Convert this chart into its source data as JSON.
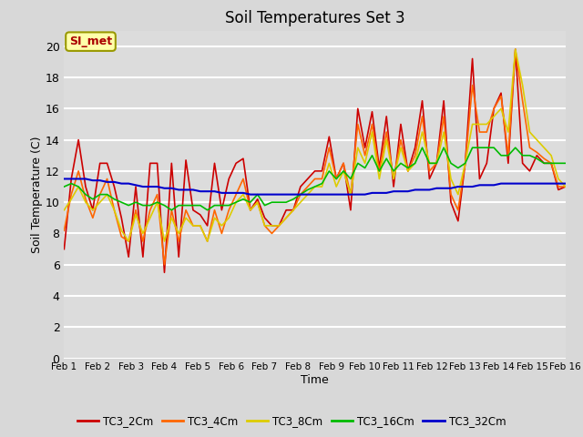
{
  "title": "Soil Temperatures Set 3",
  "xlabel": "Time",
  "ylabel": "Soil Temperature (C)",
  "ylim": [
    0,
    21
  ],
  "yticks": [
    0,
    2,
    4,
    6,
    8,
    10,
    12,
    14,
    16,
    18,
    20
  ],
  "xlabels": [
    "Feb 1",
    "Feb 2",
    "Feb 3",
    "Feb 4",
    "Feb 5",
    "Feb 6",
    "Feb 7",
    "Feb 8",
    "Feb 9",
    "Feb 10",
    "Feb 11",
    "Feb 12",
    "Feb 13",
    "Feb 14",
    "Feb 15",
    "Feb 16"
  ],
  "fig_bg": "#d8d8d8",
  "plot_bg": "#dcdcdc",
  "annotation_text": "SI_met",
  "annotation_bg": "#ffffaa",
  "annotation_border": "#999900",
  "series_order": [
    "TC3_2Cm",
    "TC3_4Cm",
    "TC3_8Cm",
    "TC3_16Cm",
    "TC3_32Cm"
  ],
  "series": {
    "TC3_2Cm": {
      "color": "#cc0000",
      "lw": 1.2,
      "values": [
        7.0,
        11.5,
        14.0,
        11.0,
        9.5,
        12.5,
        12.5,
        11.0,
        9.0,
        6.5,
        11.0,
        6.5,
        12.5,
        12.5,
        5.5,
        12.5,
        6.5,
        12.7,
        9.5,
        9.2,
        8.5,
        12.5,
        9.5,
        11.5,
        12.5,
        12.8,
        9.5,
        10.2,
        9.0,
        8.5,
        8.5,
        9.5,
        9.5,
        11.0,
        11.5,
        12.0,
        12.0,
        14.2,
        11.5,
        12.5,
        9.5,
        16.0,
        13.5,
        15.8,
        12.2,
        15.5,
        11.0,
        15.0,
        12.0,
        13.5,
        16.5,
        11.5,
        12.5,
        16.5,
        10.0,
        8.8,
        12.5,
        19.2,
        11.5,
        12.5,
        16.0,
        17.0,
        12.5,
        19.8,
        12.5,
        12.0,
        13.0,
        12.5,
        12.5,
        10.8,
        11.0
      ]
    },
    "TC3_4Cm": {
      "color": "#ff6600",
      "lw": 1.2,
      "values": [
        8.2,
        10.5,
        12.0,
        10.2,
        9.0,
        10.5,
        11.5,
        9.5,
        7.8,
        7.5,
        9.5,
        7.5,
        9.5,
        10.5,
        6.0,
        9.5,
        7.5,
        9.5,
        8.5,
        8.5,
        7.5,
        9.5,
        8.0,
        9.5,
        10.5,
        11.5,
        9.5,
        10.0,
        8.5,
        8.0,
        8.5,
        9.0,
        9.5,
        10.5,
        11.0,
        11.5,
        11.5,
        13.5,
        11.5,
        12.5,
        10.5,
        15.0,
        13.0,
        15.0,
        12.0,
        14.5,
        11.5,
        14.0,
        12.0,
        13.0,
        15.5,
        12.0,
        12.5,
        15.5,
        10.5,
        9.5,
        12.5,
        17.5,
        14.5,
        14.5,
        16.0,
        16.8,
        13.0,
        19.8,
        16.5,
        13.5,
        13.2,
        12.8,
        12.5,
        11.0,
        11.0
      ]
    },
    "TC3_8Cm": {
      "color": "#ddcc00",
      "lw": 1.2,
      "values": [
        9.5,
        10.2,
        11.0,
        10.0,
        9.5,
        10.0,
        10.5,
        9.5,
        8.2,
        7.5,
        9.2,
        8.0,
        9.0,
        10.0,
        7.5,
        9.0,
        8.0,
        9.0,
        8.5,
        8.5,
        7.5,
        9.0,
        8.5,
        9.0,
        10.0,
        10.5,
        9.5,
        10.0,
        8.5,
        8.5,
        8.5,
        9.0,
        9.5,
        10.0,
        10.5,
        11.0,
        11.0,
        12.5,
        11.0,
        12.0,
        10.5,
        13.5,
        12.5,
        14.5,
        11.5,
        14.0,
        11.5,
        13.5,
        12.0,
        12.5,
        14.5,
        12.5,
        12.5,
        14.5,
        11.5,
        10.5,
        12.5,
        15.0,
        15.0,
        15.0,
        15.5,
        16.0,
        14.5,
        19.8,
        17.5,
        14.5,
        14.0,
        13.5,
        13.0,
        11.5,
        11.0
      ]
    },
    "TC3_16Cm": {
      "color": "#00bb00",
      "lw": 1.2,
      "values": [
        11.0,
        11.2,
        11.0,
        10.5,
        10.2,
        10.5,
        10.5,
        10.2,
        10.0,
        9.8,
        10.0,
        9.8,
        9.8,
        10.0,
        9.8,
        9.5,
        9.8,
        9.8,
        9.8,
        9.8,
        9.5,
        9.8,
        9.8,
        9.8,
        10.0,
        10.2,
        10.0,
        10.5,
        9.8,
        10.0,
        10.0,
        10.0,
        10.2,
        10.5,
        10.8,
        11.0,
        11.2,
        12.0,
        11.5,
        12.0,
        11.5,
        12.5,
        12.2,
        13.0,
        12.0,
        12.8,
        12.0,
        12.5,
        12.2,
        12.5,
        13.5,
        12.5,
        12.5,
        13.5,
        12.5,
        12.2,
        12.5,
        13.5,
        13.5,
        13.5,
        13.5,
        13.0,
        13.0,
        13.5,
        13.0,
        13.0,
        12.8,
        12.5,
        12.5,
        12.5,
        12.5
      ]
    },
    "TC3_32Cm": {
      "color": "#0000cc",
      "lw": 1.5,
      "values": [
        11.5,
        11.5,
        11.5,
        11.5,
        11.4,
        11.4,
        11.3,
        11.3,
        11.2,
        11.2,
        11.1,
        11.0,
        11.0,
        11.0,
        10.9,
        10.9,
        10.8,
        10.8,
        10.8,
        10.7,
        10.7,
        10.7,
        10.6,
        10.6,
        10.6,
        10.6,
        10.5,
        10.5,
        10.5,
        10.5,
        10.5,
        10.5,
        10.5,
        10.5,
        10.5,
        10.5,
        10.5,
        10.5,
        10.5,
        10.5,
        10.5,
        10.5,
        10.5,
        10.6,
        10.6,
        10.6,
        10.7,
        10.7,
        10.7,
        10.8,
        10.8,
        10.8,
        10.9,
        10.9,
        10.9,
        11.0,
        11.0,
        11.0,
        11.1,
        11.1,
        11.1,
        11.2,
        11.2,
        11.2,
        11.2,
        11.2,
        11.2,
        11.2,
        11.2,
        11.2,
        11.2
      ]
    }
  },
  "n_points": 71,
  "legend_colors": [
    "#cc0000",
    "#ff6600",
    "#ddcc00",
    "#00bb00",
    "#0000cc"
  ],
  "legend_labels": [
    "TC3_2Cm",
    "TC3_4Cm",
    "TC3_8Cm",
    "TC3_16Cm",
    "TC3_32Cm"
  ]
}
